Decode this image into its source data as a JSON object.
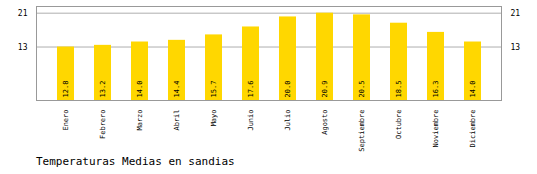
{
  "chart_data": {
    "type": "bar",
    "title": "Temperaturas Medias en sandias",
    "categories": [
      "Enero",
      "Febrero",
      "Marzo",
      "Abril",
      "Mayo",
      "Junio",
      "Julio",
      "Agosto",
      "Septiembre",
      "Octubre",
      "Noviembre",
      "Diciembre"
    ],
    "values": [
      12.8,
      13.2,
      14.0,
      14.4,
      15.7,
      17.6,
      20.0,
      20.9,
      20.5,
      18.5,
      16.3,
      14.0
    ],
    "value_labels": [
      "12.8",
      "13.2",
      "14.0",
      "14.4",
      "15.7",
      "17.6",
      "20.0",
      "20.9",
      "20.5",
      "18.5",
      "16.3",
      "14.0"
    ],
    "data_labels": true,
    "color": "#FFD700",
    "ylim": [
      0,
      22.5
    ],
    "yticks": [
      12.8,
      20.9
    ],
    "grid": true
  }
}
